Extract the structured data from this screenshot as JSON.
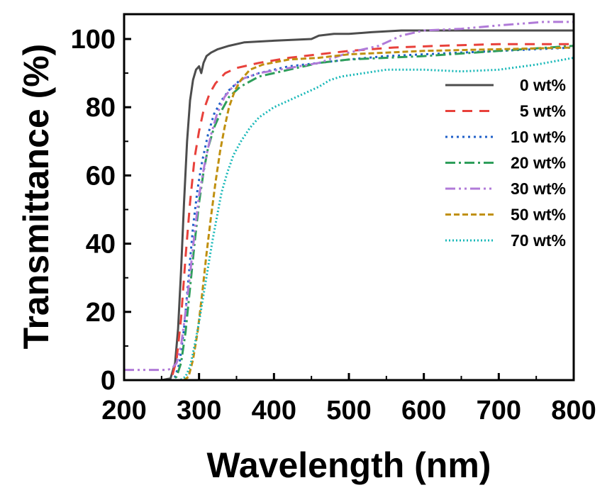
{
  "chart_data": {
    "type": "line",
    "title": "",
    "xlabel": "Wavelength (nm)",
    "ylabel": "Transmittance (%)",
    "xlim": [
      200,
      800
    ],
    "ylim": [
      0,
      105
    ],
    "xticks": [
      200,
      300,
      400,
      500,
      600,
      700,
      800
    ],
    "yticks": [
      0,
      20,
      40,
      60,
      80,
      100
    ],
    "grid": false,
    "legend": "top-right",
    "series": [
      {
        "name": "0 wt%",
        "color": "#4d4d4d",
        "dash": "solid",
        "points": [
          [
            200,
            0
          ],
          [
            250,
            0
          ],
          [
            262,
            0.5
          ],
          [
            268,
            5
          ],
          [
            272,
            15
          ],
          [
            276,
            32
          ],
          [
            280,
            52
          ],
          [
            284,
            70
          ],
          [
            288,
            82
          ],
          [
            292,
            88
          ],
          [
            296,
            91
          ],
          [
            300,
            92
          ],
          [
            303,
            90
          ],
          [
            306,
            93
          ],
          [
            310,
            95
          ],
          [
            316,
            96
          ],
          [
            325,
            97
          ],
          [
            340,
            98
          ],
          [
            360,
            99
          ],
          [
            400,
            99.5
          ],
          [
            450,
            100
          ],
          [
            460,
            101
          ],
          [
            480,
            101.5
          ],
          [
            500,
            101.5
          ],
          [
            530,
            102
          ],
          [
            570,
            102.5
          ],
          [
            620,
            102.5
          ],
          [
            700,
            102.5
          ],
          [
            800,
            102.5
          ]
        ]
      },
      {
        "name": "5 wt%",
        "color": "#e8413b",
        "dash": "14,10",
        "points": [
          [
            200,
            0
          ],
          [
            258,
            0
          ],
          [
            264,
            1
          ],
          [
            270,
            6
          ],
          [
            276,
            18
          ],
          [
            282,
            36
          ],
          [
            288,
            52
          ],
          [
            294,
            65
          ],
          [
            300,
            73
          ],
          [
            306,
            79
          ],
          [
            314,
            84
          ],
          [
            322,
            87
          ],
          [
            335,
            90
          ],
          [
            350,
            91.5
          ],
          [
            380,
            93
          ],
          [
            420,
            94.5
          ],
          [
            460,
            95.5
          ],
          [
            500,
            96.5
          ],
          [
            560,
            97.5
          ],
          [
            620,
            98
          ],
          [
            700,
            98.5
          ],
          [
            800,
            98.5
          ]
        ]
      },
      {
        "name": "10 wt%",
        "color": "#2060c8",
        "dash": "3,5",
        "points": [
          [
            200,
            0
          ],
          [
            262,
            0
          ],
          [
            268,
            1
          ],
          [
            274,
            5
          ],
          [
            280,
            15
          ],
          [
            286,
            30
          ],
          [
            292,
            45
          ],
          [
            298,
            56
          ],
          [
            304,
            64
          ],
          [
            312,
            72
          ],
          [
            320,
            78
          ],
          [
            330,
            82
          ],
          [
            340,
            85
          ],
          [
            355,
            88
          ],
          [
            380,
            90
          ],
          [
            420,
            92
          ],
          [
            460,
            93
          ],
          [
            500,
            94
          ],
          [
            550,
            95
          ],
          [
            600,
            95.5
          ],
          [
            700,
            96.5
          ],
          [
            800,
            97.5
          ]
        ]
      },
      {
        "name": "20 wt%",
        "color": "#2e9e5b",
        "dash": "14,5,3,5",
        "points": [
          [
            200,
            0
          ],
          [
            264,
            0
          ],
          [
            270,
            1
          ],
          [
            276,
            5
          ],
          [
            282,
            14
          ],
          [
            288,
            27
          ],
          [
            294,
            40
          ],
          [
            300,
            52
          ],
          [
            306,
            61
          ],
          [
            312,
            68
          ],
          [
            320,
            74
          ],
          [
            330,
            79
          ],
          [
            340,
            83
          ],
          [
            355,
            86
          ],
          [
            380,
            89
          ],
          [
            420,
            91
          ],
          [
            460,
            93
          ],
          [
            500,
            94
          ],
          [
            550,
            94.5
          ],
          [
            600,
            95
          ],
          [
            700,
            96.5
          ],
          [
            800,
            98
          ]
        ]
      },
      {
        "name": "30 wt%",
        "color": "#b07ad8",
        "dash": "14,5,3,5,3,5",
        "points": [
          [
            200,
            3
          ],
          [
            240,
            3
          ],
          [
            258,
            3
          ],
          [
            264,
            3.5
          ],
          [
            270,
            5
          ],
          [
            276,
            10
          ],
          [
            282,
            20
          ],
          [
            288,
            31
          ],
          [
            294,
            43
          ],
          [
            300,
            54
          ],
          [
            308,
            64
          ],
          [
            316,
            72
          ],
          [
            324,
            78
          ],
          [
            334,
            83
          ],
          [
            345,
            86
          ],
          [
            360,
            88.5
          ],
          [
            380,
            90
          ],
          [
            420,
            91.5
          ],
          [
            460,
            93
          ],
          [
            500,
            96
          ],
          [
            540,
            98
          ],
          [
            570,
            101
          ],
          [
            600,
            102.5
          ],
          [
            650,
            103
          ],
          [
            700,
            104
          ],
          [
            760,
            105
          ],
          [
            800,
            105
          ]
        ]
      },
      {
        "name": "50 wt%",
        "color": "#c09010",
        "dash": "8,4",
        "points": [
          [
            200,
            0
          ],
          [
            280,
            0
          ],
          [
            286,
            1
          ],
          [
            292,
            6
          ],
          [
            298,
            14
          ],
          [
            304,
            25
          ],
          [
            310,
            37
          ],
          [
            316,
            48
          ],
          [
            322,
            58
          ],
          [
            328,
            67
          ],
          [
            334,
            74
          ],
          [
            340,
            80
          ],
          [
            348,
            85
          ],
          [
            356,
            88
          ],
          [
            368,
            91
          ],
          [
            385,
            92.5
          ],
          [
            420,
            94
          ],
          [
            460,
            94.5
          ],
          [
            500,
            95.5
          ],
          [
            550,
            96
          ],
          [
            600,
            96.5
          ],
          [
            700,
            97
          ],
          [
            800,
            97.5
          ]
        ]
      },
      {
        "name": "70 wt%",
        "color": "#18b8b8",
        "dash": "2,3",
        "points": [
          [
            200,
            0
          ],
          [
            275,
            0
          ],
          [
            282,
            1
          ],
          [
            288,
            4
          ],
          [
            294,
            10
          ],
          [
            300,
            17
          ],
          [
            306,
            25
          ],
          [
            312,
            33
          ],
          [
            318,
            41
          ],
          [
            324,
            48
          ],
          [
            330,
            55
          ],
          [
            338,
            61
          ],
          [
            346,
            66
          ],
          [
            356,
            70
          ],
          [
            368,
            74
          ],
          [
            380,
            77
          ],
          [
            400,
            80
          ],
          [
            420,
            82
          ],
          [
            440,
            84
          ],
          [
            460,
            86
          ],
          [
            475,
            88
          ],
          [
            490,
            89
          ],
          [
            520,
            90
          ],
          [
            550,
            91
          ],
          [
            600,
            91
          ],
          [
            650,
            90.5
          ],
          [
            700,
            91
          ],
          [
            750,
            92.5
          ],
          [
            800,
            94.5
          ]
        ]
      }
    ]
  }
}
